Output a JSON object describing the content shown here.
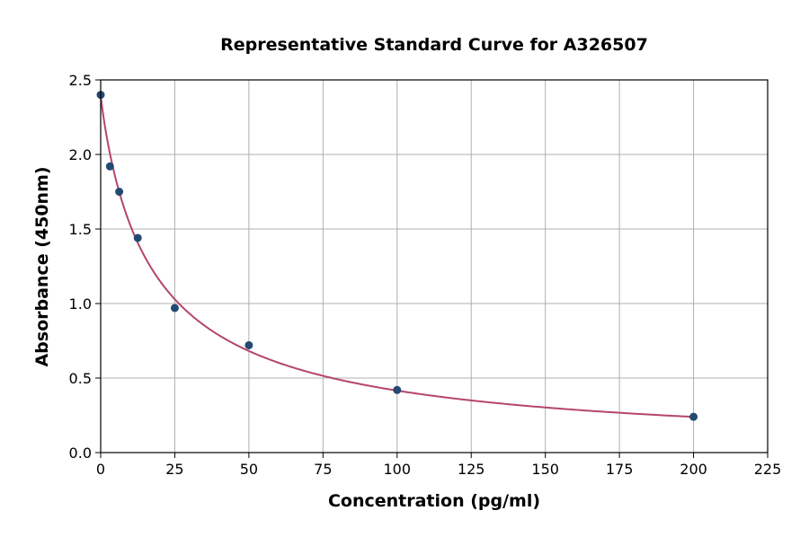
{
  "chart_data": {
    "type": "scatter",
    "title": "Representative Standard Curve for A326507",
    "xlabel": "Concentration (pg/ml)",
    "ylabel": "Absorbance (450nm)",
    "xlim": [
      0,
      225
    ],
    "ylim": [
      0,
      2.5
    ],
    "xticks": [
      0,
      25,
      50,
      75,
      100,
      125,
      150,
      175,
      200,
      225
    ],
    "yticks": [
      "0.0",
      "0.5",
      "1.0",
      "1.5",
      "2.0",
      "2.5"
    ],
    "grid": true,
    "points": {
      "x": [
        0,
        3.125,
        6.25,
        12.5,
        25,
        50,
        100,
        200
      ],
      "y": [
        2.4,
        1.92,
        1.75,
        1.44,
        0.97,
        0.72,
        0.42,
        0.24
      ]
    },
    "point_color": "#234a70",
    "curve_color": "#b5456b",
    "curve_range": [
      0,
      200
    ]
  }
}
